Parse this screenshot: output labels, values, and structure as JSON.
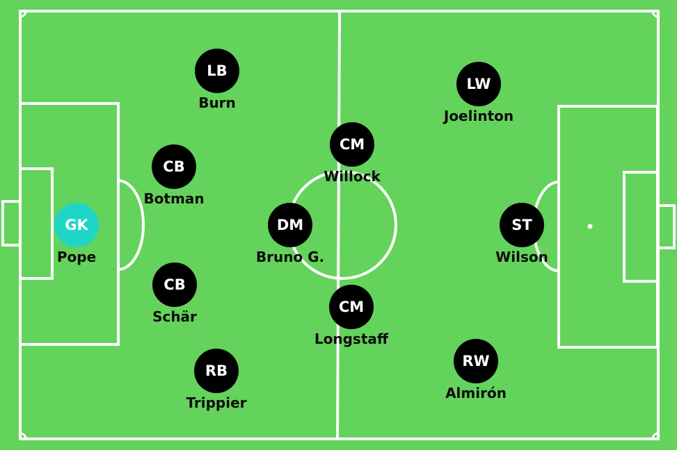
{
  "colors": {
    "pitch": "#64d35b",
    "lines": "#ffffff",
    "outfield_badge": "#000000",
    "goalkeeper_badge": "#1fd6c6",
    "badge_text": "#ffffff",
    "name_text": "#0c0c0c"
  },
  "players": [
    {
      "position": "GK",
      "name": "Pope"
    },
    {
      "position": "LB",
      "name": "Burn"
    },
    {
      "position": "CB",
      "name": "Botman"
    },
    {
      "position": "CB",
      "name": "Schär"
    },
    {
      "position": "RB",
      "name": "Trippier"
    },
    {
      "position": "DM",
      "name": "Bruno G."
    },
    {
      "position": "CM",
      "name": "Willock"
    },
    {
      "position": "CM",
      "name": "Longstaff"
    },
    {
      "position": "LW",
      "name": "Joelinton"
    },
    {
      "position": "ST",
      "name": "Wilson"
    },
    {
      "position": "RW",
      "name": "Almirón"
    }
  ]
}
